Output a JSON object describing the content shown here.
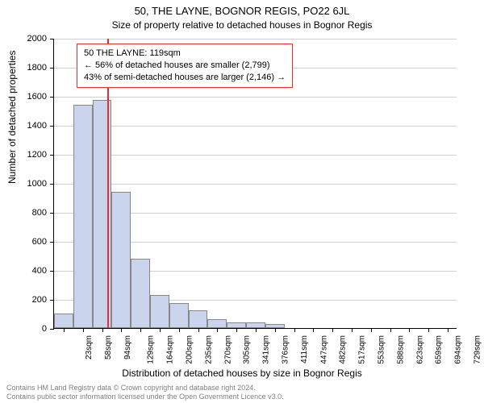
{
  "chart": {
    "type": "histogram",
    "title_main": "50, THE LAYNE, BOGNOR REGIS, PO22 6JL",
    "title_sub": "Size of property relative to detached houses in Bognor Regis",
    "ylabel": "Number of detached properties",
    "xlabel": "Distribution of detached houses by size in Bognor Regis",
    "background_color": "#ffffff",
    "grid_color": "#cfcfcf",
    "bar_fill": "#cad4ec",
    "bar_border": "#888888",
    "marker_color": "#e03030",
    "infobox_border": "#e03030",
    "ylim": [
      0,
      2000
    ],
    "ytick_step": 200,
    "yticks": [
      "0",
      "200",
      "400",
      "600",
      "800",
      "1000",
      "1200",
      "1400",
      "1600",
      "1800",
      "2000"
    ],
    "xticks": [
      "23sqm",
      "58sqm",
      "94sqm",
      "129sqm",
      "164sqm",
      "200sqm",
      "235sqm",
      "270sqm",
      "305sqm",
      "341sqm",
      "376sqm",
      "411sqm",
      "447sqm",
      "482sqm",
      "517sqm",
      "553sqm",
      "588sqm",
      "623sqm",
      "659sqm",
      "694sqm",
      "729sqm"
    ],
    "values": [
      100,
      1540,
      1570,
      940,
      480,
      230,
      175,
      125,
      60,
      40,
      40,
      30,
      0,
      0,
      0,
      0,
      0,
      0,
      0,
      0,
      0
    ],
    "marker_after_index": 2,
    "info_box": {
      "line1": "50 THE LAYNE: 119sqm",
      "line2": "← 56% of detached houses are smaller (2,799)",
      "line3": "43% of semi-detached houses are larger (2,146) →"
    },
    "title_fontsize": 13,
    "label_fontsize": 12,
    "tick_fontsize": 11,
    "bar_width_ratio": 1.0
  },
  "footer": {
    "line1": "Contains HM Land Registry data © Crown copyright and database right 2024.",
    "line2": "Contains public sector information licensed under the Open Government Licence v3.0."
  }
}
